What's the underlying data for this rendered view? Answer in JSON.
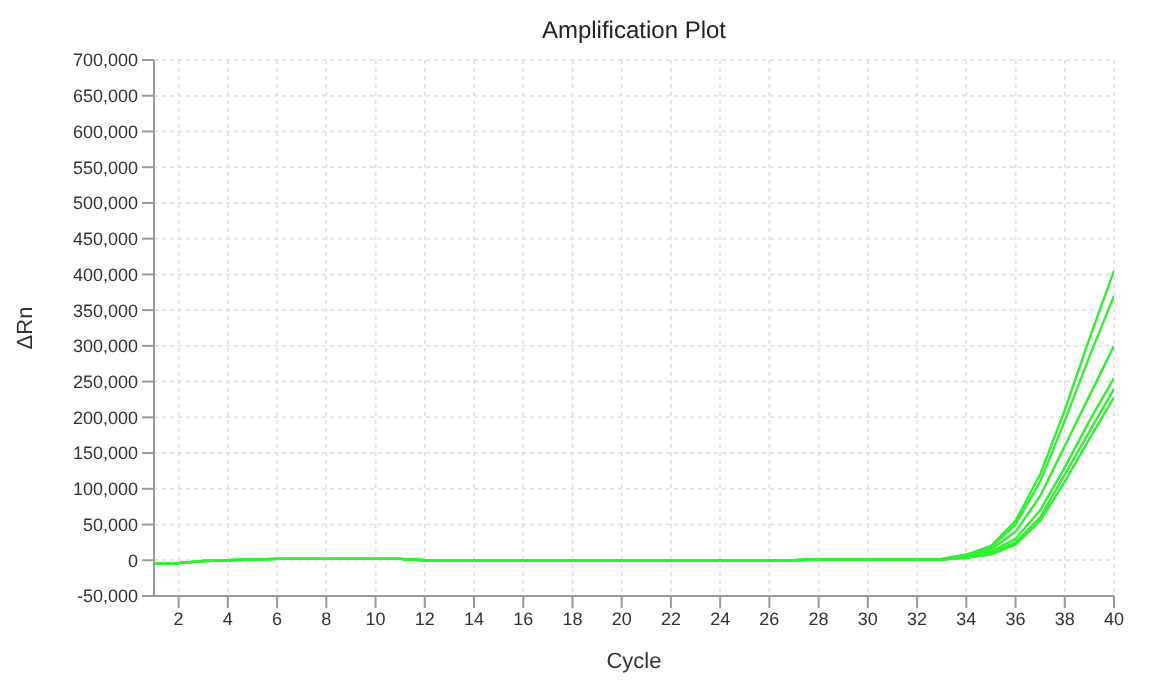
{
  "chart_data": {
    "type": "line",
    "title": "Amplification Plot",
    "xlabel": "Cycle",
    "ylabel": "ΔRn",
    "x": [
      1,
      2,
      3,
      4,
      5,
      6,
      7,
      8,
      9,
      10,
      11,
      12,
      13,
      14,
      15,
      16,
      17,
      18,
      19,
      20,
      21,
      22,
      23,
      24,
      25,
      26,
      27,
      28,
      29,
      30,
      31,
      32,
      33,
      34,
      35,
      36,
      37,
      38,
      39,
      40
    ],
    "series": [
      {
        "color": "#33ee33",
        "values": [
          -5000,
          -4000,
          -1000,
          0,
          1000,
          2000,
          2000,
          2000,
          2000,
          2000,
          2000,
          0,
          0,
          0,
          0,
          0,
          0,
          0,
          0,
          0,
          0,
          0,
          0,
          0,
          0,
          0,
          0,
          1000,
          1000,
          1000,
          1000,
          1000,
          2000,
          8000,
          20000,
          55000,
          120000,
          210000,
          310000,
          405000
        ]
      },
      {
        "color": "#33ee33",
        "values": [
          -5000,
          -4000,
          -1000,
          0,
          1000,
          2000,
          2000,
          2000,
          2000,
          2000,
          2000,
          0,
          0,
          0,
          0,
          0,
          0,
          0,
          0,
          0,
          0,
          0,
          0,
          0,
          0,
          0,
          0,
          1000,
          1000,
          1000,
          1000,
          1000,
          2000,
          7000,
          18000,
          50000,
          110000,
          195000,
          285000,
          370000
        ]
      },
      {
        "color": "#33ee33",
        "values": [
          -5000,
          -4000,
          -1000,
          0,
          1000,
          2000,
          2000,
          2000,
          2000,
          2000,
          2000,
          0,
          0,
          0,
          0,
          0,
          0,
          0,
          0,
          0,
          0,
          0,
          0,
          0,
          0,
          0,
          0,
          1000,
          1000,
          1000,
          1000,
          1000,
          1000,
          6000,
          15000,
          40000,
          90000,
          160000,
          230000,
          300000
        ]
      },
      {
        "color": "#33ee33",
        "values": [
          -5000,
          -4000,
          -1000,
          0,
          1000,
          2000,
          2000,
          2000,
          2000,
          2000,
          2000,
          0,
          0,
          0,
          0,
          0,
          0,
          0,
          0,
          0,
          0,
          0,
          0,
          0,
          0,
          0,
          0,
          1000,
          1000,
          1000,
          1000,
          1000,
          1000,
          5000,
          12000,
          30000,
          70000,
          130000,
          195000,
          255000
        ]
      },
      {
        "color": "#33ee33",
        "values": [
          -5000,
          -4000,
          -1000,
          0,
          1000,
          2000,
          2000,
          2000,
          2000,
          2000,
          2000,
          0,
          0,
          0,
          0,
          0,
          0,
          0,
          0,
          0,
          0,
          0,
          0,
          0,
          0,
          0,
          0,
          1000,
          1000,
          1000,
          1000,
          1000,
          1000,
          4000,
          10000,
          25000,
          60000,
          120000,
          180000,
          240000
        ]
      },
      {
        "color": "#33ee33",
        "values": [
          -5000,
          -4000,
          -1000,
          0,
          1000,
          2000,
          2000,
          2000,
          2000,
          2000,
          2000,
          0,
          0,
          0,
          0,
          0,
          0,
          0,
          0,
          0,
          0,
          0,
          0,
          0,
          0,
          0,
          0,
          1000,
          1000,
          1000,
          1000,
          1000,
          1000,
          3000,
          8000,
          22000,
          55000,
          110000,
          170000,
          228000
        ]
      }
    ],
    "xlim": [
      1,
      40
    ],
    "xticks": [
      2,
      4,
      6,
      8,
      10,
      12,
      14,
      16,
      18,
      20,
      22,
      24,
      26,
      28,
      30,
      32,
      34,
      36,
      38,
      40
    ],
    "ylim": [
      -50000,
      700000
    ],
    "yticks": [
      {
        "value": -50000,
        "label": "-50,000"
      },
      0,
      {
        "value": 50000,
        "label": "50,000"
      },
      {
        "value": 100000,
        "label": "100,000"
      },
      {
        "value": 150000,
        "label": "150,000"
      },
      {
        "value": 200000,
        "label": "200,000"
      },
      {
        "value": 250000,
        "label": "250,000"
      },
      {
        "value": 300000,
        "label": "300,000"
      },
      {
        "value": 350000,
        "label": "350,000"
      },
      {
        "value": 400000,
        "label": "400,000"
      },
      {
        "value": 450000,
        "label": "450,000"
      },
      {
        "value": 500000,
        "label": "500,000"
      },
      {
        "value": 550000,
        "label": "550,000"
      },
      {
        "value": 600000,
        "label": "600,000"
      },
      {
        "value": 650000,
        "label": "650,000"
      },
      {
        "value": 700000,
        "label": "700,000"
      }
    ],
    "grid": true,
    "legend": false
  }
}
